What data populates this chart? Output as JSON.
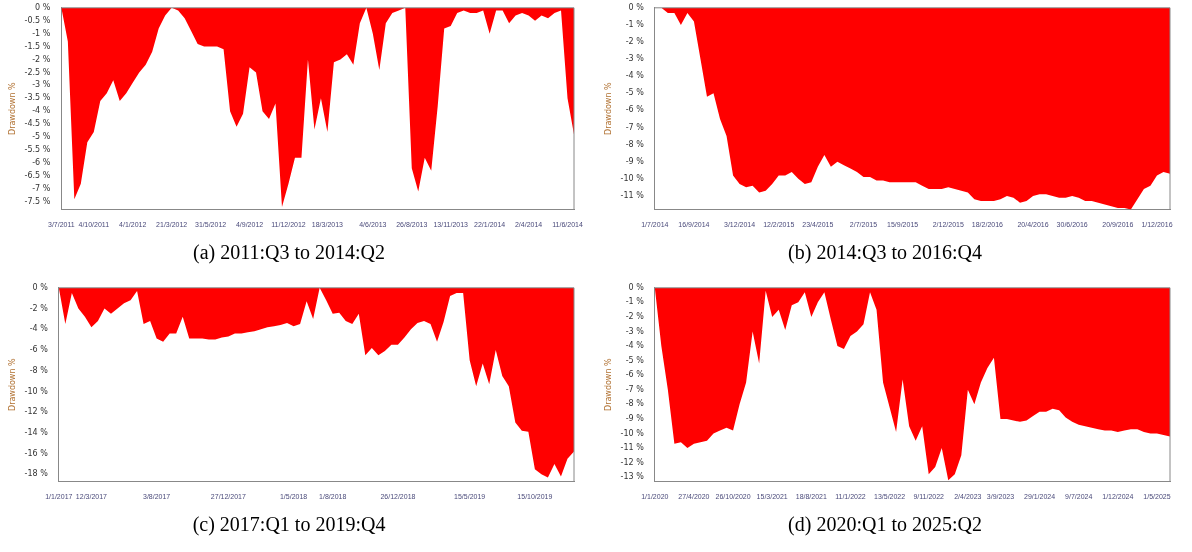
{
  "chart_data": [
    {
      "type": "area",
      "title": "(a) 2011:Q3 to 2014:Q2",
      "ylabel": "Drawdown %",
      "color": "#ff0000",
      "categories": [
        "3/7/2011",
        null,
        null,
        null,
        null,
        "4/10/2011",
        null,
        null,
        null,
        null,
        null,
        "4/1/2012",
        null,
        null,
        null,
        null,
        null,
        "21/3/2012",
        null,
        null,
        null,
        null,
        null,
        "31/5/2012",
        null,
        null,
        null,
        null,
        null,
        "4/9/2012",
        null,
        null,
        null,
        null,
        null,
        "11/12/2012",
        null,
        null,
        null,
        null,
        null,
        "18/3/2013",
        null,
        null,
        null,
        null,
        null,
        null,
        "4/6/2013",
        null,
        null,
        null,
        null,
        null,
        "26/8/2013",
        null,
        null,
        null,
        null,
        null,
        "13/11/2013",
        null,
        null,
        null,
        null,
        null,
        "22/1/2014",
        null,
        null,
        null,
        null,
        null,
        "2/4/2014",
        null,
        null,
        null,
        null,
        null,
        "11/6/2014",
        null
      ],
      "values": [
        0,
        -1.3,
        -7.4,
        -6.8,
        -5.2,
        -4.8,
        -3.6,
        -3.3,
        -2.8,
        -3.6,
        -3.3,
        -2.9,
        -2.5,
        -2.2,
        -1.7,
        -0.8,
        -0.3,
        0,
        -0.1,
        -0.4,
        -0.9,
        -1.4,
        -1.5,
        -1.5,
        -1.5,
        -1.6,
        -4.0,
        -4.6,
        -4.1,
        -2.3,
        -2.5,
        -4.0,
        -4.3,
        -3.7,
        -7.7,
        -6.8,
        -5.8,
        -5.8,
        -2.0,
        -4.7,
        -3.5,
        -4.8,
        -2.1,
        -2.0,
        -1.8,
        -2.2,
        -0.6,
        0,
        -1.0,
        -2.4,
        -0.6,
        -0.2,
        -0.1,
        0,
        -6.2,
        -7.1,
        -5.8,
        -6.3,
        -3.8,
        -0.8,
        -0.7,
        -0.2,
        -0.1,
        -0.2,
        -0.2,
        -0.1,
        -1.0,
        -0.1,
        -0.1,
        -0.6,
        -0.3,
        -0.2,
        -0.3,
        -0.5,
        -0.3,
        -0.4,
        -0.2,
        -0.1,
        -3.5,
        -4.9
      ],
      "ylim": [
        -7.8,
        0
      ],
      "yticks": [
        {
          "value": 0,
          "label": "0 %"
        },
        {
          "value": -0.5,
          "label": "-0.5 %"
        },
        {
          "value": -1,
          "label": "-1 %"
        },
        {
          "value": -1.5,
          "label": "-1.5 %"
        },
        {
          "value": -2,
          "label": "-2 %"
        },
        {
          "value": -2.5,
          "label": "-2.5 %"
        },
        {
          "value": -3,
          "label": "-3 %"
        },
        {
          "value": -3.5,
          "label": "-3.5 %"
        },
        {
          "value": -4,
          "label": "-4 %"
        },
        {
          "value": -4.5,
          "label": "-4.5 %"
        },
        {
          "value": -5,
          "label": "-5 %"
        },
        {
          "value": -5.5,
          "label": "-5.5 %"
        },
        {
          "value": -6,
          "label": "-6 %"
        },
        {
          "value": -6.5,
          "label": "-6.5 %"
        },
        {
          "value": -7,
          "label": "-7 %"
        },
        {
          "value": -7.5,
          "label": "-7.5 %"
        }
      ]
    },
    {
      "type": "area",
      "title": "(b) 2014:Q3 to 2016:Q4",
      "ylabel": "Drawdown %",
      "color": "#ff0000",
      "categories": [
        "1/7/2014",
        null,
        null,
        null,
        null,
        null,
        "16/9/2014",
        null,
        null,
        null,
        null,
        null,
        null,
        "3/12/2014",
        null,
        null,
        null,
        null,
        null,
        "12/2/2015",
        null,
        null,
        null,
        null,
        null,
        "23/4/2015",
        null,
        null,
        null,
        null,
        null,
        null,
        "2/7/2015",
        null,
        null,
        null,
        null,
        null,
        "15/9/2015",
        null,
        null,
        null,
        null,
        null,
        null,
        "2/12/2015",
        null,
        null,
        null,
        null,
        null,
        "18/2/2016",
        null,
        null,
        null,
        null,
        null,
        null,
        "20/4/2016",
        null,
        null,
        null,
        null,
        null,
        "30/6/2016",
        null,
        null,
        null,
        null,
        null,
        null,
        "20/9/2016",
        null,
        null,
        null,
        null,
        null,
        "1/12/2016",
        null,
        null
      ],
      "values": [
        0,
        0,
        -0.3,
        -0.3,
        -1.0,
        -0.3,
        -0.8,
        -3.0,
        -5.2,
        -5.0,
        -6.5,
        -7.5,
        -9.8,
        -10.3,
        -10.5,
        -10.4,
        -10.8,
        -10.7,
        -10.3,
        -9.8,
        -9.8,
        -9.6,
        -10.0,
        -10.3,
        -10.2,
        -9.3,
        -8.6,
        -9.3,
        -9.0,
        -9.2,
        -9.4,
        -9.6,
        -9.9,
        -9.9,
        -10.1,
        -10.1,
        -10.2,
        -10.2,
        -10.2,
        -10.2,
        -10.2,
        -10.4,
        -10.6,
        -10.6,
        -10.6,
        -10.5,
        -10.6,
        -10.7,
        -10.8,
        -11.2,
        -11.3,
        -11.3,
        -11.3,
        -11.2,
        -11.0,
        -11.1,
        -11.4,
        -11.3,
        -11.0,
        -10.9,
        -10.9,
        -11.0,
        -11.1,
        -11.1,
        -11.0,
        -11.1,
        -11.3,
        -11.3,
        -11.4,
        -11.5,
        -11.6,
        -11.7,
        -11.7,
        -11.8,
        -11.2,
        -10.6,
        -10.4,
        -9.8,
        -9.6,
        -9.7
      ],
      "ylim": [
        -11.8,
        0
      ],
      "yticks": [
        {
          "value": 0,
          "label": "0 %"
        },
        {
          "value": -1,
          "label": "-1 %"
        },
        {
          "value": -2,
          "label": "-2 %"
        },
        {
          "value": -3,
          "label": "-3 %"
        },
        {
          "value": -4,
          "label": "-4 %"
        },
        {
          "value": -5,
          "label": "-5 %"
        },
        {
          "value": -6,
          "label": "-6 %"
        },
        {
          "value": -7,
          "label": "-7 %"
        },
        {
          "value": -8,
          "label": "-8 %"
        },
        {
          "value": -9,
          "label": "-9 %"
        },
        {
          "value": -10,
          "label": "-10 %"
        },
        {
          "value": -11,
          "label": "-11 %"
        }
      ]
    },
    {
      "type": "area",
      "title": "(c) 2017:Q1 to 2019:Q4",
      "ylabel": "Drawdown %",
      "color": "#ff0000",
      "categories": [
        "1/1/2017",
        null,
        null,
        null,
        null,
        "12/3/2017",
        null,
        null,
        null,
        null,
        null,
        null,
        null,
        null,
        null,
        "3/8/2017",
        null,
        null,
        null,
        null,
        null,
        null,
        null,
        null,
        null,
        null,
        "27/12/2017",
        null,
        null,
        null,
        null,
        null,
        null,
        null,
        null,
        null,
        "1/5/2018",
        null,
        null,
        null,
        null,
        null,
        "1/8/2018",
        null,
        null,
        null,
        null,
        null,
        null,
        null,
        null,
        null,
        "26/12/2018",
        null,
        null,
        null,
        null,
        null,
        null,
        null,
        null,
        null,
        null,
        "15/5/2019",
        null,
        null,
        null,
        null,
        null,
        null,
        null,
        null,
        null,
        "15/10/2019",
        null,
        null,
        null,
        null,
        null,
        null
      ],
      "values": [
        0,
        -3.5,
        -0.5,
        -2.0,
        -2.8,
        -3.8,
        -3.2,
        -2.0,
        -2.5,
        -2.0,
        -1.5,
        -1.2,
        -0.3,
        -3.5,
        -3.2,
        -4.9,
        -5.2,
        -4.4,
        -4.4,
        -2.8,
        -4.9,
        -4.9,
        -4.9,
        -5.0,
        -5.0,
        -4.8,
        -4.7,
        -4.4,
        -4.4,
        -4.3,
        -4.2,
        -4.0,
        -3.8,
        -3.7,
        -3.6,
        -3.4,
        -3.7,
        -3.5,
        -1.3,
        -3.0,
        0,
        -1.2,
        -2.5,
        -2.4,
        -3.2,
        -3.5,
        -2.5,
        -6.5,
        -5.8,
        -6.5,
        -6.1,
        -5.5,
        -5.5,
        -4.8,
        -4.0,
        -3.4,
        -3.2,
        -3.5,
        -5.2,
        -3.3,
        -0.8,
        -0.5,
        -0.5,
        -7.0,
        -9.5,
        -7.3,
        -9.3,
        -6.0,
        -8.5,
        -9.5,
        -13.0,
        -13.8,
        -13.9,
        -17.5,
        -18.0,
        -18.3,
        -17.0,
        -18.2,
        -16.5,
        -15.8
      ],
      "ylim": [
        -18.7,
        0
      ],
      "yticks": [
        {
          "value": 0,
          "label": "0 %"
        },
        {
          "value": -2,
          "label": "-2 %"
        },
        {
          "value": -4,
          "label": "-4 %"
        },
        {
          "value": -6,
          "label": "-6 %"
        },
        {
          "value": -8,
          "label": "-8 %"
        },
        {
          "value": -10,
          "label": "-10 %"
        },
        {
          "value": -12,
          "label": "-12 %"
        },
        {
          "value": -14,
          "label": "-14 %"
        },
        {
          "value": -16,
          "label": "-16 %"
        },
        {
          "value": -18,
          "label": "-18 %"
        }
      ]
    },
    {
      "type": "area",
      "title": "(d) 2020:Q1 to 2025:Q2",
      "ylabel": "Drawdown %",
      "color": "#ff0000",
      "categories": [
        "1/1/2020",
        null,
        null,
        null,
        null,
        null,
        "27/4/2020",
        null,
        null,
        null,
        null,
        null,
        "26/10/2020",
        null,
        null,
        null,
        null,
        null,
        "15/3/2021",
        null,
        null,
        null,
        null,
        null,
        "18/8/2021",
        null,
        null,
        null,
        null,
        null,
        "11/1/2022",
        null,
        null,
        null,
        null,
        null,
        "13/5/2022",
        null,
        null,
        null,
        null,
        null,
        "9/11/2022",
        null,
        null,
        null,
        null,
        null,
        "2/4/2023",
        null,
        null,
        null,
        null,
        "3/9/2023",
        null,
        null,
        null,
        null,
        null,
        "29/1/2024",
        null,
        null,
        null,
        null,
        null,
        "9/7/2024",
        null,
        null,
        null,
        null,
        null,
        "1/12/2024",
        null,
        null,
        null,
        null,
        null,
        "1/5/2025",
        null,
        null
      ],
      "values": [
        0,
        -4.0,
        -7.0,
        -10.7,
        -10.6,
        -11.0,
        -10.7,
        -10.6,
        -10.5,
        -10.0,
        -9.8,
        -9.6,
        -9.8,
        -8.0,
        -6.5,
        -3.0,
        -5.2,
        -0.2,
        -2.0,
        -1.5,
        -2.9,
        -1.2,
        -1.0,
        -0.3,
        -2.0,
        -1.0,
        -0.3,
        -2.2,
        -4.0,
        -4.2,
        -3.3,
        -3.0,
        -2.5,
        -0.3,
        -1.5,
        -6.5,
        -8.2,
        -9.9,
        -6.3,
        -9.5,
        -10.5,
        -9.5,
        -12.8,
        -12.3,
        -11.0,
        -13.2,
        -12.8,
        -11.5,
        -7.0,
        -8.0,
        -6.5,
        -5.5,
        -4.8,
        -9.0,
        -9.0,
        -9.1,
        -9.2,
        -9.1,
        -8.8,
        -8.5,
        -8.5,
        -8.3,
        -8.4,
        -8.9,
        -9.2,
        -9.4,
        -9.5,
        -9.6,
        -9.7,
        -9.8,
        -9.8,
        -9.9,
        -9.8,
        -9.7,
        -9.7,
        -9.9,
        -10.0,
        -10.0,
        -10.1,
        -10.2
      ],
      "ylim": [
        -13.3,
        0
      ],
      "yticks": [
        {
          "value": 0,
          "label": "0 %"
        },
        {
          "value": -1,
          "label": "-1 %"
        },
        {
          "value": -2,
          "label": "-2 %"
        },
        {
          "value": -3,
          "label": "-3 %"
        },
        {
          "value": -4,
          "label": "-4 %"
        },
        {
          "value": -5,
          "label": "-5 %"
        },
        {
          "value": -6,
          "label": "-6 %"
        },
        {
          "value": -7,
          "label": "-7 %"
        },
        {
          "value": -8,
          "label": "-8 %"
        },
        {
          "value": -9,
          "label": "-9 %"
        },
        {
          "value": -10,
          "label": "-10 %"
        },
        {
          "value": -11,
          "label": "-11 %"
        },
        {
          "value": -12,
          "label": "-12 %"
        },
        {
          "value": -13,
          "label": "-13 %"
        }
      ]
    }
  ]
}
